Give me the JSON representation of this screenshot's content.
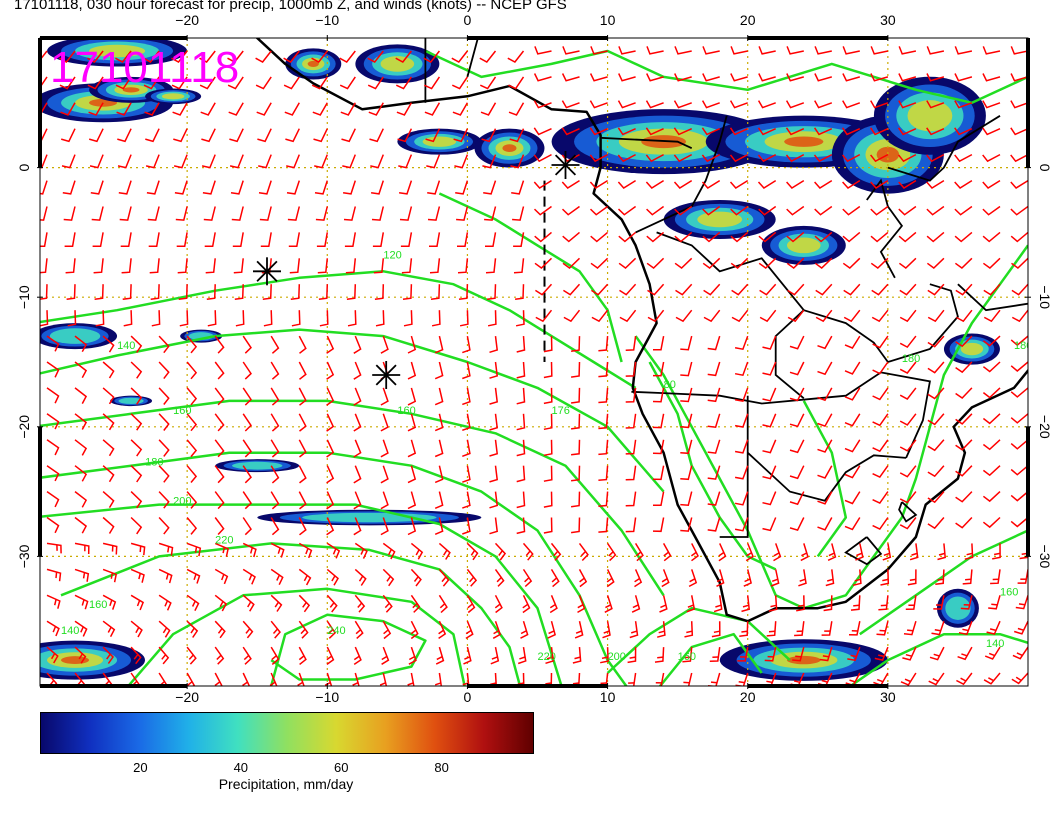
{
  "title": "17101118, 030 hour forecast for precip, 1000mb Z, and winds (knots) -- NCEP GFS",
  "stamp": "17101118",
  "lon_ticks": [
    {
      "lon": -20,
      "label": "−20"
    },
    {
      "lon": -10,
      "label": "−10"
    },
    {
      "lon": 0,
      "label": "0"
    },
    {
      "lon": 10,
      "label": "10"
    },
    {
      "lon": 20,
      "label": "20"
    },
    {
      "lon": 30,
      "label": "30"
    }
  ],
  "lat_ticks": [
    {
      "lat": 0,
      "label": "0"
    },
    {
      "lat": -10,
      "label": "−10"
    },
    {
      "lat": -20,
      "label": "−20"
    },
    {
      "lat": -30,
      "label": "−30"
    }
  ],
  "contour_labels": [
    {
      "text": "120",
      "lon": -6,
      "lat": -7
    },
    {
      "text": "140",
      "lon": -25,
      "lat": -14
    },
    {
      "text": "160",
      "lon": -21,
      "lat": -19
    },
    {
      "text": "160",
      "lon": -5,
      "lat": -19
    },
    {
      "text": "180",
      "lon": -23,
      "lat": -23
    },
    {
      "text": "200",
      "lon": -21,
      "lat": -26
    },
    {
      "text": "220",
      "lon": -18,
      "lat": -29
    },
    {
      "text": "240",
      "lon": -10,
      "lat": -36
    },
    {
      "text": "176",
      "lon": 6,
      "lat": -19
    },
    {
      "text": "80",
      "lon": 14,
      "lat": -17
    },
    {
      "text": "180",
      "lon": 31,
      "lat": -15
    },
    {
      "text": "180",
      "lon": 39,
      "lat": -14
    },
    {
      "text": "160",
      "lon": 38,
      "lat": -33
    },
    {
      "text": "140",
      "lon": 37,
      "lat": -37
    },
    {
      "text": "160",
      "lon": -27,
      "lat": -34
    },
    {
      "text": "140",
      "lon": -29,
      "lat": -36
    },
    {
      "text": "220",
      "lon": 5,
      "lat": -38
    },
    {
      "text": "200",
      "lon": 10,
      "lat": -38
    },
    {
      "text": "160",
      "lon": 15,
      "lat": -38
    }
  ],
  "colorbar": {
    "label": "Precipitation, mm/day",
    "ticks": [
      {
        "value": 20,
        "label": "20"
      },
      {
        "value": 40,
        "label": "40"
      },
      {
        "value": 60,
        "label": "60"
      },
      {
        "value": 80,
        "label": "80"
      }
    ],
    "min": 0,
    "max": 98,
    "colors": [
      "#08086b",
      "#1030c0",
      "#1a6ae6",
      "#20b0e8",
      "#40e0c0",
      "#90e060",
      "#d8d830",
      "#e8a020",
      "#e05010",
      "#b01010",
      "#600000"
    ]
  },
  "map": {
    "lon_range": [
      -30.5,
      40
    ],
    "lat_range": [
      -40,
      10
    ],
    "contour_color": "#22dd22",
    "wind_color": "#ff0000",
    "coast_color": "#000000",
    "grid_color": "#ccaa00"
  }
}
